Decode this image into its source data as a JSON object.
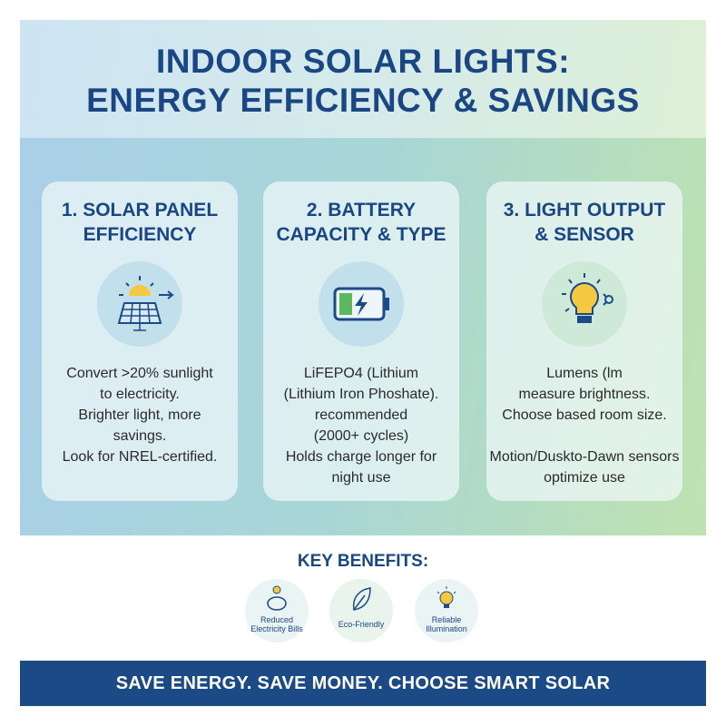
{
  "title": {
    "line1": "INDOOR SOLAR LIGHTS:",
    "line2": "ENERGY EFFICIENCY & SAVINGS"
  },
  "cards": [
    {
      "title1": "1. SOLAR PANEL",
      "title2": "EFFICIENCY",
      "icon": "solar-panel-icon",
      "lines": [
        "Convert >20% sunlight",
        "to electricity.",
        "Brighter light, more",
        "savings.",
        "Look for NREL-certified."
      ]
    },
    {
      "title1": "2. BATTERY",
      "title2": "CAPACITY & TYPE",
      "icon": "battery-charging-icon",
      "lines": [
        "LiFEPO4 (Lithium",
        "(Lithium Iron Phoshate).",
        "recommended",
        "(2000+ cycles)",
        "Holds charge longer for",
        "night use"
      ]
    },
    {
      "title1": "3. LIGHT OUTPUT",
      "title2": "& SENSOR",
      "icon": "light-bulb-sensor-icon",
      "lines": [
        "Lumens (lm",
        "measure brightness.",
        "Choose based room size.",
        "",
        "Motion/Duskto-Dawn sensors",
        "optimize use"
      ]
    }
  ],
  "key_benefits": {
    "title": "KEY BENEFITS:",
    "items": [
      {
        "line1": "Reduced",
        "line2": "Electricity Bills",
        "icon": "piggy-bank-icon"
      },
      {
        "line1": "Eco-Friendly",
        "line2": "",
        "icon": "leaf-icon"
      },
      {
        "line1": "Reliable",
        "line2": "Illumination",
        "icon": "light-bulb-icon"
      }
    ]
  },
  "footer": "SAVE ENERGY. SAVE MONEY. CHOOSE SMART SOLAR",
  "colors": {
    "navy": "#1b4a86",
    "sun": "#f5c842",
    "battery_green": "#5cb85c"
  }
}
